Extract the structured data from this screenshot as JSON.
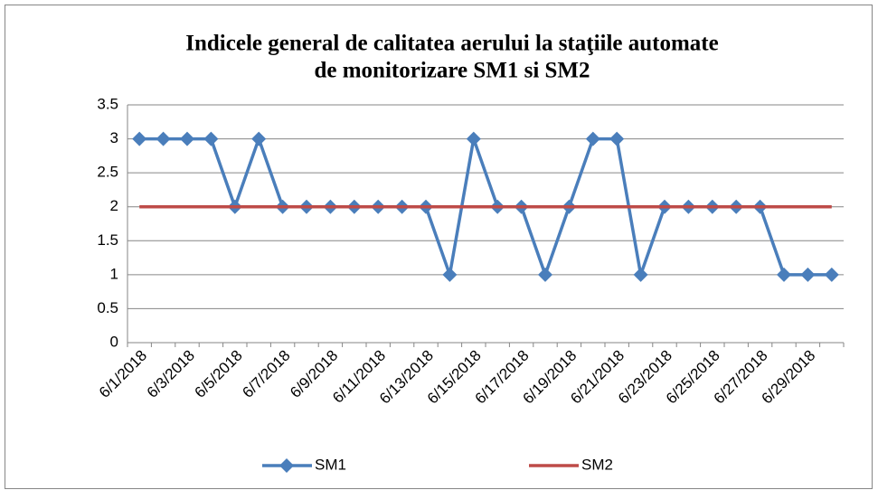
{
  "chart_data": {
    "type": "line",
    "title": [
      "Indicele general de calitatea aerului la staţiile automate",
      "de monitorizare SM1 si SM2"
    ],
    "categories": [
      "6/1/2018",
      null,
      "6/3/2018",
      null,
      "6/5/2018",
      null,
      "6/7/2018",
      null,
      "6/9/2018",
      null,
      "6/11/2018",
      null,
      "6/13/2018",
      null,
      "6/15/2018",
      null,
      "6/17/2018",
      null,
      "6/19/2018",
      null,
      "6/21/2018",
      null,
      "6/23/2018",
      null,
      "6/25/2018",
      null,
      "6/27/2018",
      null,
      "6/29/2018",
      null
    ],
    "series": [
      {
        "name": "SM1",
        "color": "#4a7ebb",
        "marker": "diamond",
        "values": [
          3,
          3,
          3,
          3,
          2,
          3,
          2,
          2,
          2,
          2,
          2,
          2,
          2,
          1,
          3,
          2,
          2,
          1,
          2,
          3,
          3,
          1,
          2,
          2,
          2,
          2,
          2,
          1,
          1,
          1
        ]
      },
      {
        "name": "SM2",
        "color": "#be4b48",
        "marker": null,
        "values": [
          2,
          2,
          2,
          2,
          2,
          2,
          2,
          2,
          2,
          2,
          2,
          2,
          2,
          2,
          2,
          2,
          2,
          2,
          2,
          2,
          2,
          2,
          2,
          2,
          2,
          2,
          2,
          2,
          2,
          2
        ]
      }
    ],
    "ylim": [
      0,
      3.5
    ],
    "yticks": [
      0,
      0.5,
      1,
      1.5,
      2,
      2.5,
      3,
      3.5
    ],
    "grid": true,
    "legend": "bottom"
  }
}
